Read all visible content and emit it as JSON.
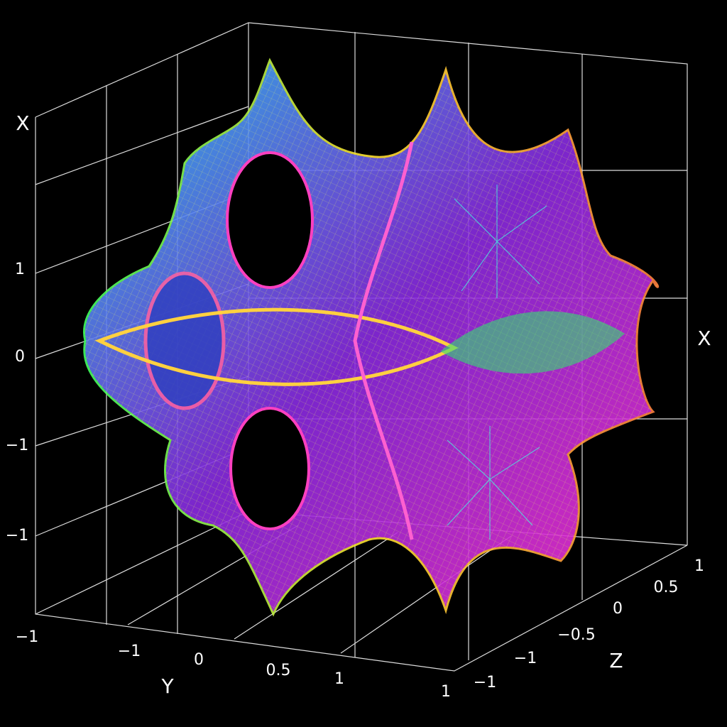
{
  "axes": {
    "left": {
      "label": "X",
      "ticks": [
        "1",
        "0",
        "−1",
        "−1"
      ]
    },
    "y": {
      "label": "Y",
      "ticks": [
        "−1",
        "−1",
        "0",
        "0.5",
        "1",
        "1"
      ]
    },
    "z": {
      "label": "Z",
      "ticks": [
        "1",
        "0.5",
        "0",
        "−0.5",
        "−1",
        "−1"
      ]
    },
    "right": {
      "label": "X"
    }
  }
}
